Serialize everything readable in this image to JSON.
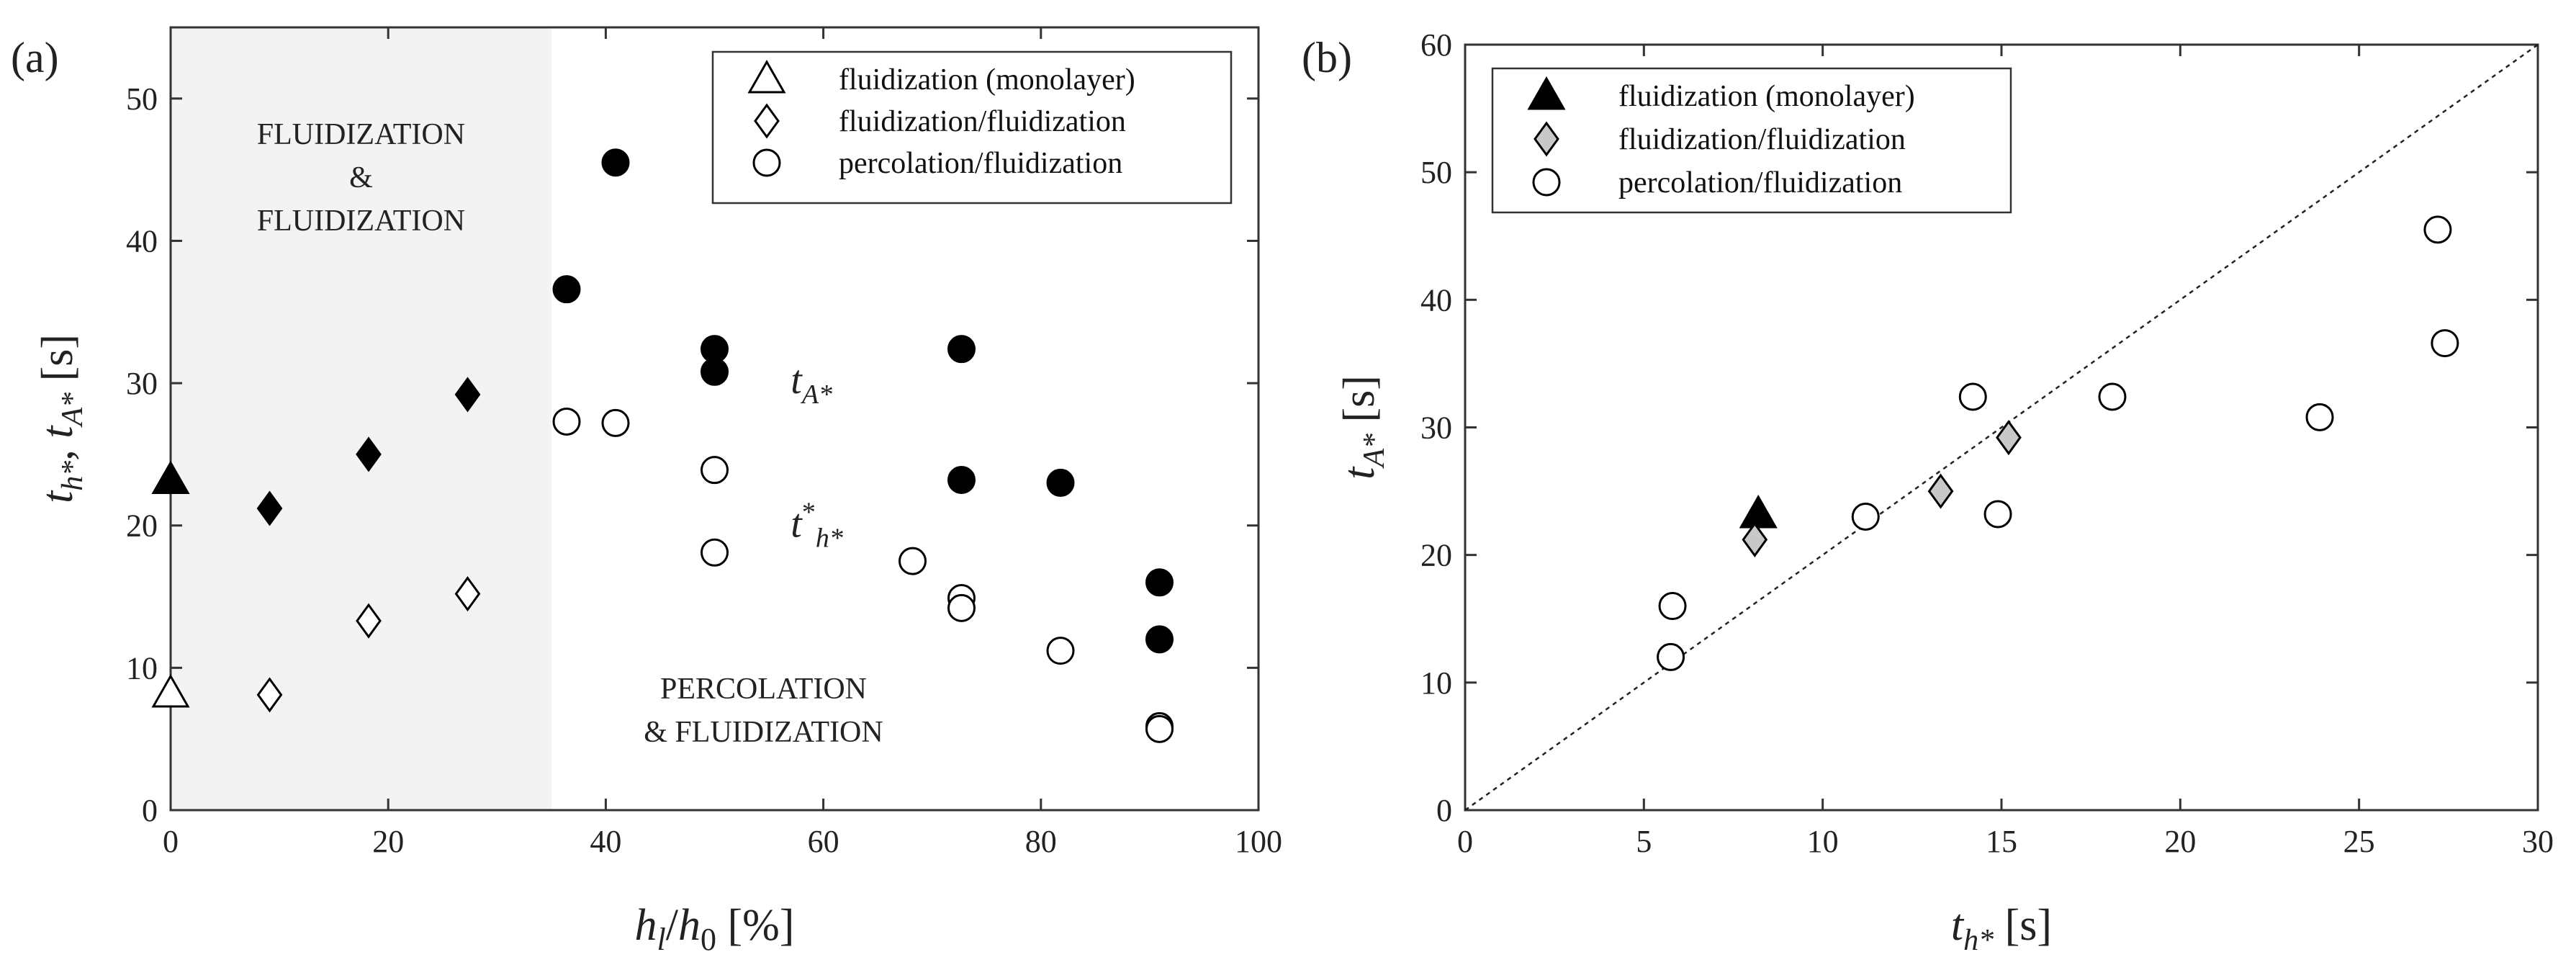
{
  "chart_data": [
    {
      "panel_label": "(a)",
      "type": "scatter",
      "xlabel": "h_l/h_0 [%]",
      "ylabel": "t_h*, t_A* [s]",
      "xlim": [
        0,
        100
      ],
      "ylim": [
        0,
        55
      ],
      "xticks": [
        0,
        20,
        40,
        60,
        80,
        100
      ],
      "yticks": [
        0,
        10,
        20,
        30,
        40,
        50
      ],
      "grid": false,
      "legend_position": "top-right",
      "shaded_region": {
        "x_range": [
          0,
          35
        ],
        "color": "#f3f3f3"
      },
      "region_labels": [
        {
          "lines": [
            "FLUIDIZATION",
            "&",
            "FLUIDIZATION"
          ]
        },
        {
          "lines": [
            "PERCOLATION",
            "& FLUIDIZATION"
          ]
        }
      ],
      "annotations": [
        "t_A*",
        "t*_h*"
      ],
      "legend": [
        {
          "marker": "triangle",
          "label": "fluidization (monolayer)"
        },
        {
          "marker": "diamond",
          "label": "fluidization/fluidization"
        },
        {
          "marker": "circle",
          "label": "percolation/fluidization"
        }
      ],
      "series": [
        {
          "marker": "triangle",
          "fill": "#000000",
          "points": [
            [
              0,
              23.2
            ]
          ]
        },
        {
          "marker": "triangle",
          "fill": "#ffffff",
          "points": [
            [
              0,
              8.2
            ]
          ]
        },
        {
          "marker": "diamond",
          "fill": "#000000",
          "points": [
            [
              9.1,
              21.2
            ],
            [
              18.2,
              25.0
            ],
            [
              27.3,
              29.2
            ]
          ]
        },
        {
          "marker": "diamond",
          "fill": "#ffffff",
          "points": [
            [
              9.1,
              8.1
            ],
            [
              18.2,
              13.3
            ],
            [
              27.3,
              15.2
            ]
          ]
        },
        {
          "marker": "circle",
          "fill": "#000000",
          "points": [
            [
              36.4,
              36.6
            ],
            [
              40.9,
              45.5
            ],
            [
              50.0,
              32.4
            ],
            [
              50.0,
              30.8
            ],
            [
              72.7,
              32.4
            ],
            [
              72.7,
              23.2
            ],
            [
              81.8,
              23.0
            ],
            [
              90.9,
              16.0
            ],
            [
              90.9,
              12.0
            ]
          ]
        },
        {
          "marker": "circle",
          "fill": "#ffffff",
          "points": [
            [
              36.4,
              27.3
            ],
            [
              40.9,
              27.2
            ],
            [
              50.0,
              23.9
            ],
            [
              50.0,
              18.1
            ],
            [
              68.2,
              17.5
            ],
            [
              72.7,
              14.9
            ],
            [
              72.7,
              14.2
            ],
            [
              81.8,
              11.2
            ],
            [
              90.9,
              5.9
            ],
            [
              90.9,
              5.7
            ]
          ]
        }
      ]
    },
    {
      "panel_label": "(b)",
      "type": "scatter",
      "xlabel": "t_h* [s]",
      "ylabel": "t_A* [s]",
      "xlim": [
        0,
        30
      ],
      "ylim": [
        0,
        60
      ],
      "xticks": [
        0,
        5,
        10,
        15,
        20,
        25,
        30
      ],
      "yticks": [
        0,
        10,
        20,
        30,
        40,
        50,
        60
      ],
      "grid": false,
      "legend_position": "top-left",
      "reference_line": {
        "from": [
          0,
          0
        ],
        "to": [
          30,
          60
        ],
        "style": "dotted"
      },
      "legend": [
        {
          "marker": "triangle",
          "fill": "#000000",
          "label": "fluidization (monolayer)"
        },
        {
          "marker": "diamond",
          "fill": "#c8c8c8",
          "label": "fluidization/fluidization"
        },
        {
          "marker": "circle",
          "fill": "#ffffff",
          "label": "percolation/fluidization"
        }
      ],
      "series": [
        {
          "marker": "triangle",
          "fill": "#000000",
          "points": [
            [
              8.2,
              23.2
            ]
          ]
        },
        {
          "marker": "diamond",
          "fill": "#c8c8c8",
          "points": [
            [
              8.1,
              21.2
            ],
            [
              13.3,
              25.0
            ],
            [
              15.2,
              29.2
            ]
          ]
        },
        {
          "marker": "circle",
          "fill": "#ffffff",
          "points": [
            [
              5.8,
              16.0
            ],
            [
              5.75,
              12.0
            ],
            [
              11.2,
              23.0
            ],
            [
              14.2,
              32.4
            ],
            [
              14.9,
              23.2
            ],
            [
              18.1,
              32.4
            ],
            [
              23.9,
              30.8
            ],
            [
              27.2,
              45.5
            ],
            [
              27.4,
              36.6
            ]
          ]
        }
      ]
    }
  ]
}
